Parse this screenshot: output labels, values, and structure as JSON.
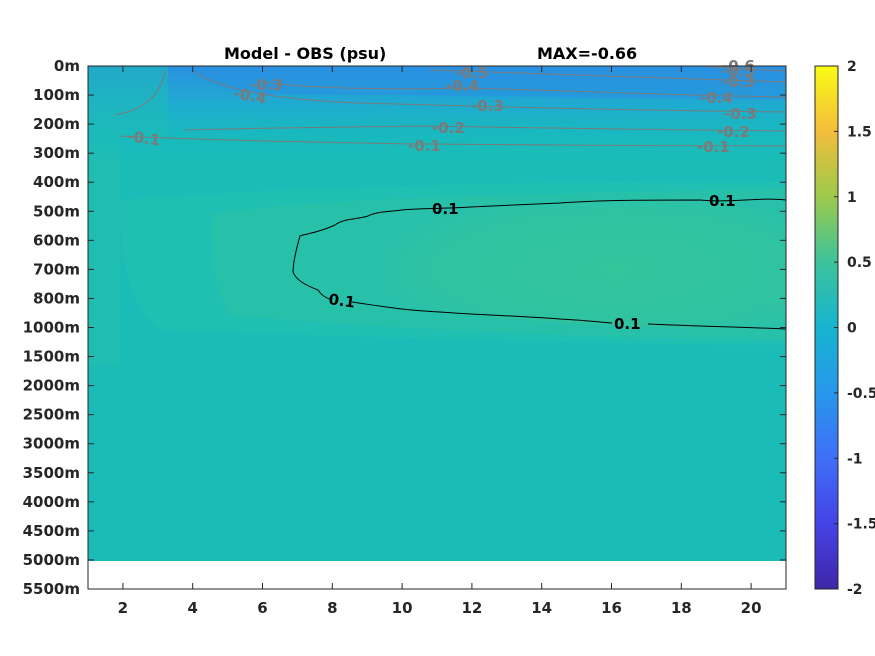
{
  "chart_data": {
    "type": "heatmap",
    "title": "Model - OBS (psu)",
    "subtitle": "MAX=-0.66",
    "x_ticks": [
      2,
      4,
      6,
      8,
      10,
      12,
      14,
      16,
      18,
      20
    ],
    "xlim": [
      1,
      21
    ],
    "y_ticks": [
      "0m",
      "100m",
      "200m",
      "300m",
      "400m",
      "500m",
      "600m",
      "700m",
      "800m",
      "1000m",
      "1500m",
      "2000m",
      "2500m",
      "3000m",
      "3500m",
      "4000m",
      "4500m",
      "5000m",
      "5500m"
    ],
    "colorbar": {
      "range": [
        -2,
        2
      ],
      "ticks": [
        "2",
        "1.5",
        "1",
        "0.5",
        "0",
        "-0.5",
        "-1",
        "-1.5",
        "-2"
      ],
      "colormap": "parula"
    },
    "contours": [
      {
        "level": 0.1,
        "color": "#000000",
        "labels": [
          "0.1",
          "0.1",
          "0.1",
          "0.1"
        ]
      },
      {
        "level": -0.1,
        "color": "#7a7a7a",
        "labels": [
          "-0.1",
          "-0.1",
          "-0.1"
        ]
      },
      {
        "level": -0.2,
        "color": "#7a7a7a",
        "labels": [
          "-0.2",
          "-0.2"
        ]
      },
      {
        "level": -0.3,
        "color": "#7a7a7a",
        "labels": [
          "-0.3",
          "-0.3",
          "-0.3",
          "-0.3"
        ]
      },
      {
        "level": -0.4,
        "color": "#7a7a7a",
        "labels": [
          "-0.4",
          "-0.4",
          "-0.4"
        ]
      },
      {
        "level": -0.5,
        "color": "#7a7a7a",
        "labels": [
          "-0.5",
          "-0.5"
        ]
      },
      {
        "level": -0.6,
        "color": "#7a7a7a",
        "labels": [
          "-0.6"
        ]
      }
    ],
    "colors": {
      "background_field": "#1bbcb8",
      "anomaly_core": "#2ec49f",
      "surface_fresh": "#2a8ee0",
      "missing": "#ffffff"
    }
  }
}
